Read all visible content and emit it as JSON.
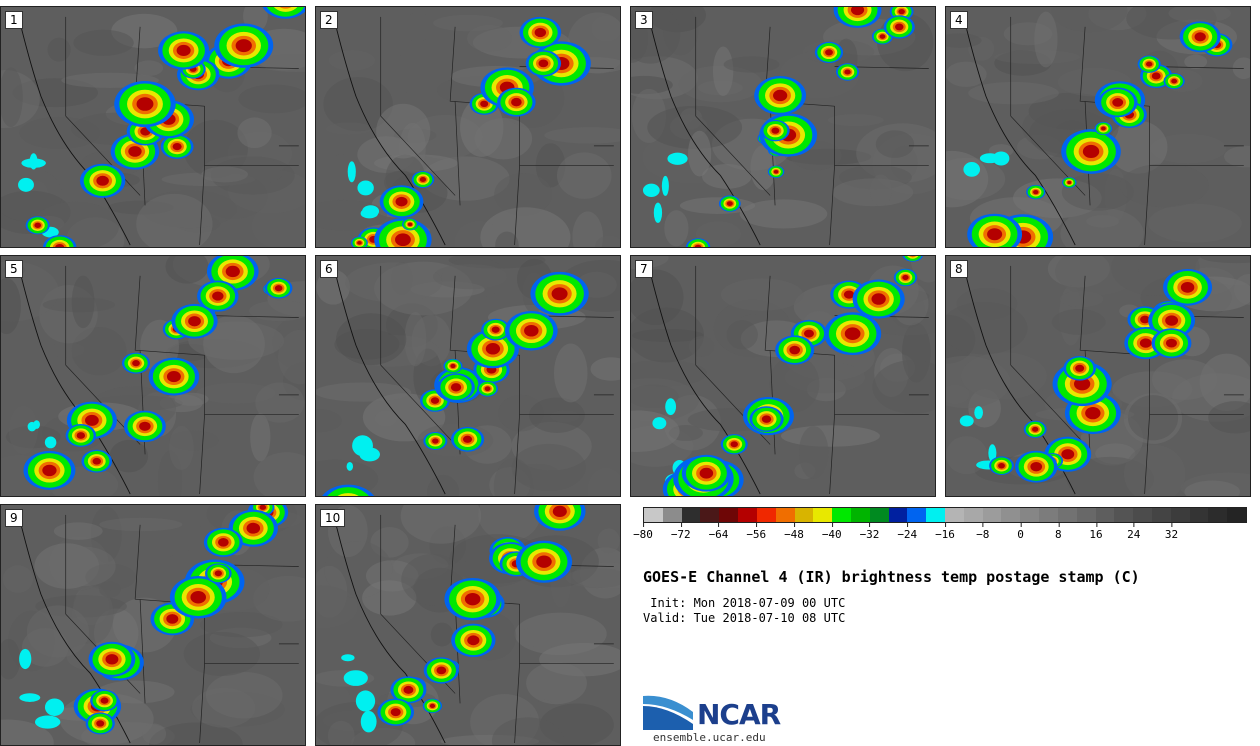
{
  "panels": [
    {
      "label": "1",
      "seed": 11
    },
    {
      "label": "2",
      "seed": 27
    },
    {
      "label": "3",
      "seed": 43
    },
    {
      "label": "4",
      "seed": 59
    },
    {
      "label": "5",
      "seed": 71
    },
    {
      "label": "6",
      "seed": 83
    },
    {
      "label": "7",
      "seed": 97
    },
    {
      "label": "8",
      "seed": 109
    },
    {
      "label": "9",
      "seed": 127
    },
    {
      "label": "10",
      "seed": 139
    }
  ],
  "colorbar": {
    "colors": [
      "#c8c8c8",
      "#8c8c8c",
      "#2e2e2e",
      "#4a1818",
      "#6e0606",
      "#b40000",
      "#f02800",
      "#f06e00",
      "#d8b400",
      "#e8e800",
      "#00e800",
      "#00b400",
      "#008a20",
      "#0020a0",
      "#0064f0",
      "#00f0f0",
      "#b4b4b4",
      "#a8a8a8",
      "#9c9c9c",
      "#909090",
      "#868686",
      "#7c7c7c",
      "#727272",
      "#686868",
      "#5e5e5e",
      "#545454",
      "#4c4c4c",
      "#444444",
      "#3c3c3c",
      "#343434",
      "#2c2c2c",
      "#242424"
    ],
    "min": -80,
    "max": 40,
    "ticks": [
      "−80",
      "−72",
      "−64",
      "−56",
      "−48",
      "−40",
      "−32",
      "−24",
      "−16",
      "−8",
      "0",
      "8",
      "16",
      "24",
      "32"
    ]
  },
  "title": "GOES-E Channel 4 (IR) brightness temp postage stamp (C)",
  "init": " Init: Mon 2018-07-09 00 UTC",
  "valid": "Valid: Tue 2018-07-10 08 UTC",
  "logo": {
    "name": "NCAR",
    "url": "ensemble.ucar.edu",
    "colors": {
      "blue": "#1c3f8c",
      "light": "#3a8fd0"
    }
  }
}
